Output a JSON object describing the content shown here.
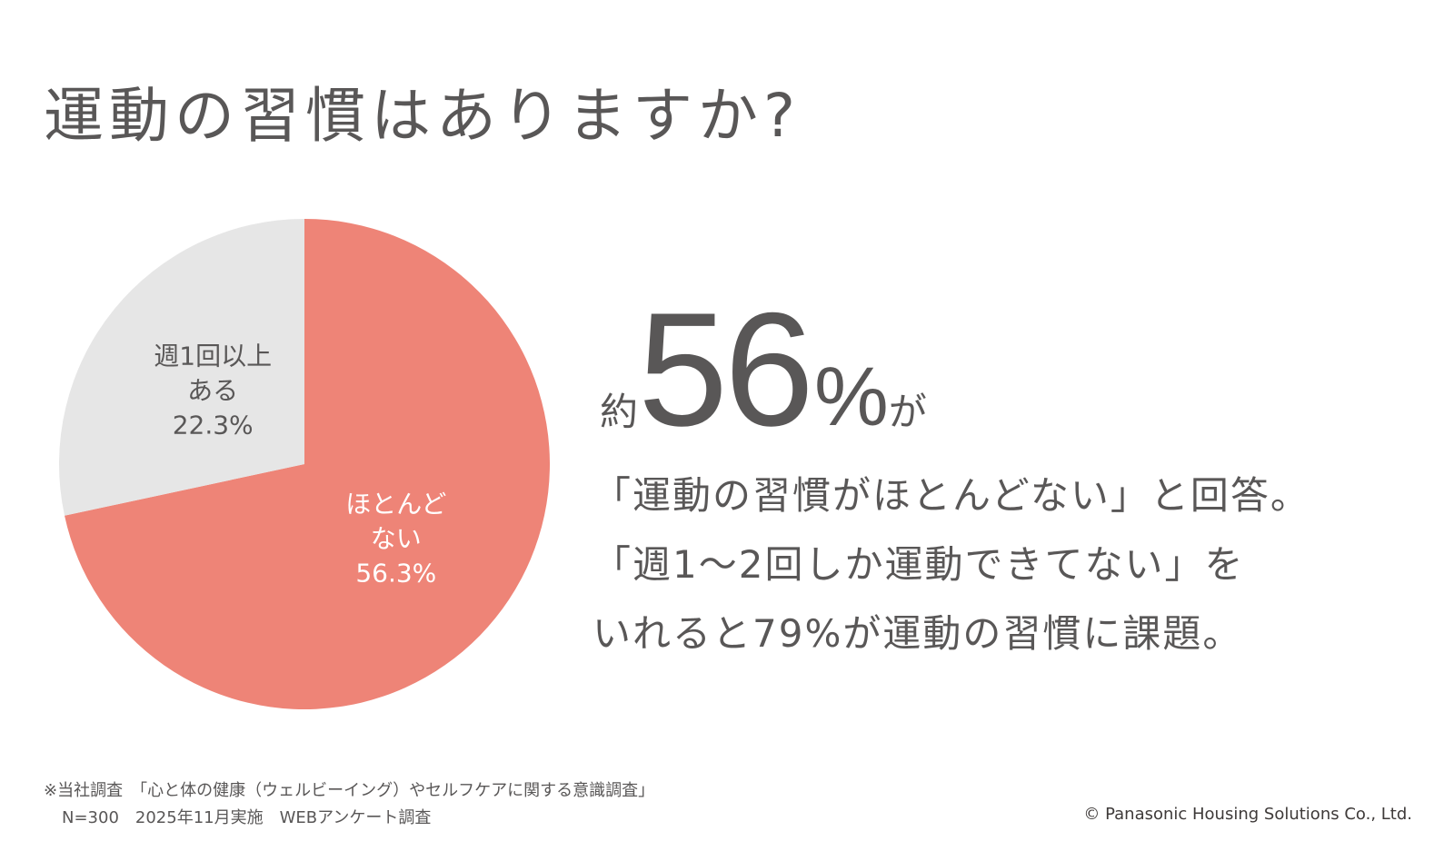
{
  "page": {
    "title": "運動の習慣はありますか?"
  },
  "chart_data": {
    "type": "pie",
    "title": "",
    "slices": [
      {
        "label_lines": [
          "ほとんど",
          "ない"
        ],
        "value_label": "56.3%",
        "value": 56.3,
        "color": "#ee8477",
        "text_color": "#ffffff"
      },
      {
        "label_lines": [
          "週1回以上",
          "ある"
        ],
        "value_label": "22.3%",
        "value": 22.3,
        "color": "#e6e6e6",
        "text_color": "#595757"
      }
    ],
    "start_angle_deg": 0,
    "direction": "clockwise"
  },
  "headline": {
    "prefix": "約",
    "number": "56",
    "percent": "%",
    "suffix": "が"
  },
  "body": {
    "line1": "「運動の習慣がほとんどない」と回答。",
    "line2": "「週1〜2回しか運動できてない」を",
    "line3": "いれると79%が運動の習慣に課題。"
  },
  "footnote": {
    "line1": "※当社調査　「心と体の健康（ウェルビーイング）やセルフケアに関する意識調査」",
    "line2": "N=300　2025年11月実施　WEBアンケート調査"
  },
  "copyright": "© Panasonic Housing Solutions Co., Ltd."
}
